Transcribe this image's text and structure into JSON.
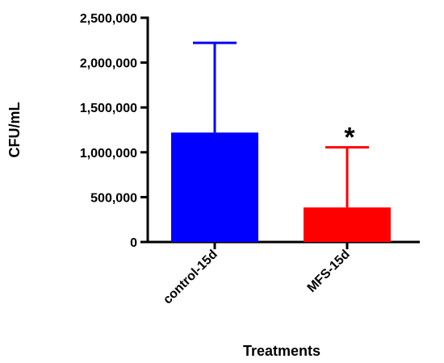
{
  "chart_data": {
    "type": "bar",
    "title": "",
    "xlabel": "Treatments",
    "ylabel": "CFU/mL",
    "ylim": [
      0,
      2500000
    ],
    "yticks": [
      0,
      500000,
      1000000,
      1500000,
      2000000,
      2500000
    ],
    "ytick_labels": [
      "0",
      "500,000",
      "1,000,000",
      "1,500,000",
      "2,000,000",
      "2,500,000"
    ],
    "categories": [
      "control-15d",
      "MFS-15d"
    ],
    "values": [
      1220000,
      385000
    ],
    "error_upper": [
      2220000,
      1055000
    ],
    "significance": [
      "",
      "*"
    ],
    "colors": [
      "#0000ff",
      "#ff0000"
    ],
    "grid": false,
    "legend": "none"
  }
}
